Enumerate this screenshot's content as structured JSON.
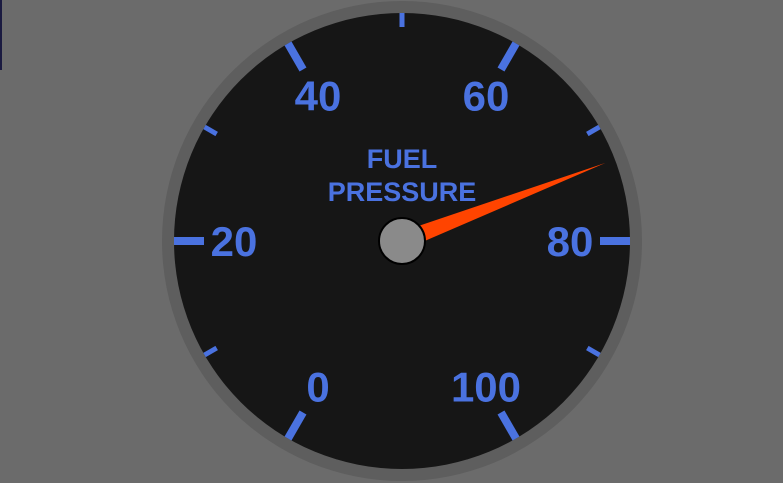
{
  "gauge": {
    "title_line1": "FUEL",
    "title_line2": "PRESSURE",
    "min": 0,
    "max": 100,
    "value": 73,
    "major_ticks": [
      "0",
      "20",
      "40",
      "60",
      "80",
      "100"
    ],
    "colors": {
      "background": "#6b6b6b",
      "bezel": "#5e5e5e",
      "face": "#161616",
      "accent": "#4a72e0",
      "needle": "#ff4400",
      "hub": "#8a8a8a"
    }
  }
}
